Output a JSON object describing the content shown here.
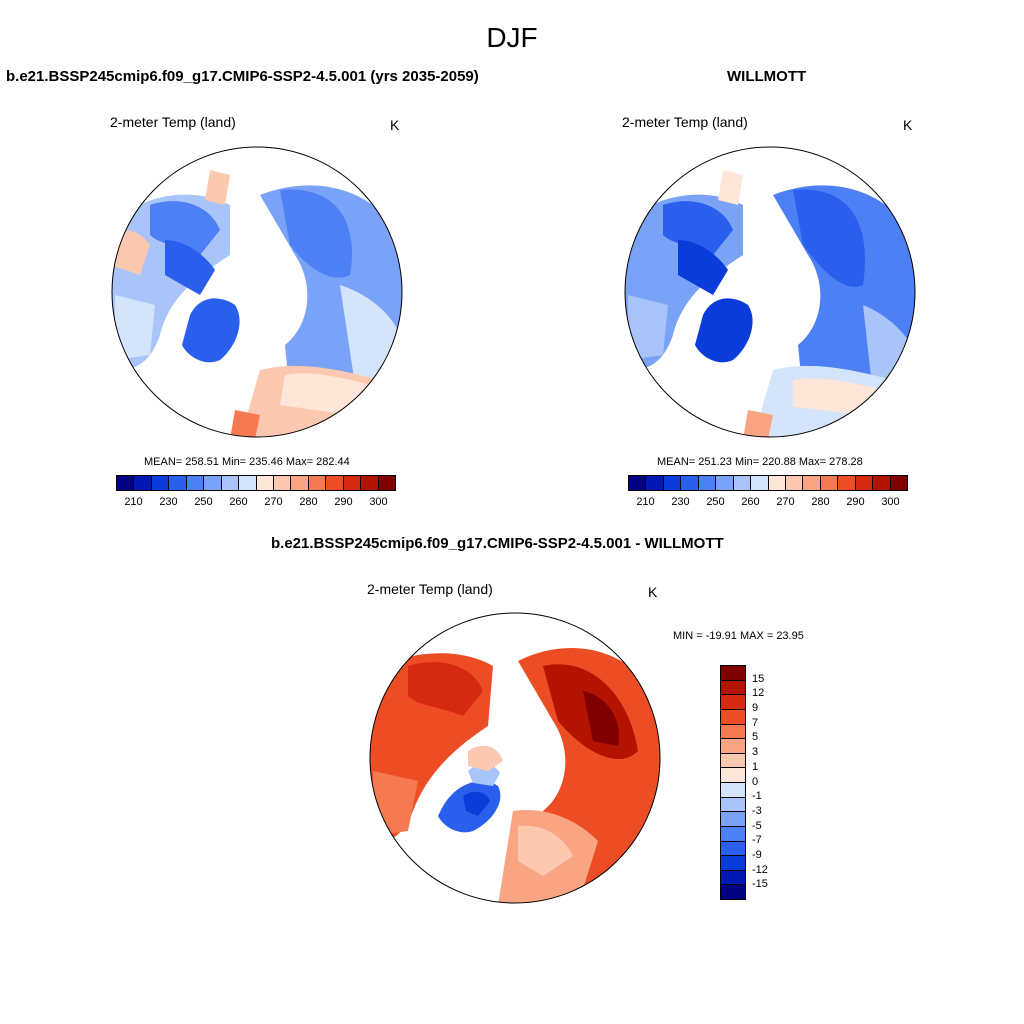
{
  "season": "DJF",
  "panels": [
    {
      "title": "b.e21.BSSP245cmip6.f09_g17.CMIP6-SSP2-4.5.001 (yrs 2035-2059)",
      "variable": "2-meter Temp (land)",
      "units": "K",
      "stats": "MEAN= 258.51  Min= 235.46  Max= 282.44"
    },
    {
      "title": "WILLMOTT",
      "variable": "2-meter Temp (land)",
      "units": "K",
      "stats": "MEAN= 251.23  Min= 220.88  Max= 278.28"
    }
  ],
  "diff_panel": {
    "title": "b.e21.BSSP245cmip6.f09_g17.CMIP6-SSP2-4.5.001 - WILLMOTT",
    "variable": "2-meter Temp (land)",
    "units": "K",
    "minmax": "MIN = -19.91 MAX =  23.95"
  },
  "abs_colorbar": {
    "colors": [
      "#000080",
      "#0019b3",
      "#0a3cd9",
      "#2a5eec",
      "#4d7ff5",
      "#7aa3f7",
      "#a8c4f8",
      "#d4e4fb",
      "#ffe6d8",
      "#fcc9b0",
      "#f9a482",
      "#f57a52",
      "#ec4d25",
      "#d62a10",
      "#b31400",
      "#800000"
    ],
    "labels": [
      "210",
      "230",
      "250",
      "260",
      "270",
      "280",
      "290",
      "300"
    ]
  },
  "diff_colorbar": {
    "colors": [
      "#800000",
      "#b31400",
      "#d62a10",
      "#ec4d25",
      "#f57a52",
      "#f9a482",
      "#fcc9b0",
      "#ffe6d8",
      "#d4e4fb",
      "#a8c4f8",
      "#7aa3f7",
      "#4d7ff5",
      "#2a5eec",
      "#0a3cd9",
      "#0019b3",
      "#000080"
    ],
    "labels": [
      "15",
      "12",
      "9",
      "7",
      "5",
      "3",
      "1",
      "0",
      "-1",
      "-3",
      "-5",
      "-7",
      "-9",
      "-12",
      "-15"
    ]
  }
}
